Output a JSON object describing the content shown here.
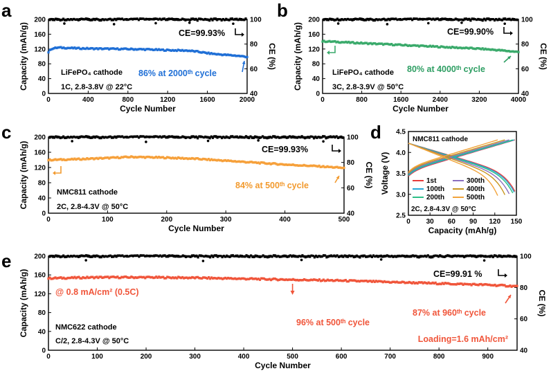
{
  "chart_data": [
    {
      "panel": "a",
      "type": "scatter",
      "xlabel": "Cycle Number",
      "ylabel": "Capacity (mAh/g)",
      "y2label": "CE (%)",
      "xlim": [
        0,
        2000
      ],
      "ylim": [
        0,
        200
      ],
      "y2lim": [
        40,
        100
      ],
      "xticks": [
        0,
        400,
        800,
        1200,
        1600,
        2000
      ],
      "yticks": [
        0,
        40,
        80,
        120,
        160,
        200
      ],
      "y2ticks": [
        40,
        60,
        80,
        100
      ],
      "notes": [
        "LiFePO₄ cathode",
        "1C, 2.8-3.8V @ 22°C"
      ],
      "ce_label": "CE=99.93%",
      "annotation": "86% at 2000ᵗʰ cycle",
      "annotation_color": "#1f6fd6",
      "series": [
        {
          "color": "#1f6fd6",
          "points": [
            [
              0,
              112
            ],
            [
              30,
              121
            ],
            [
              100,
              124
            ],
            [
              300,
              122
            ],
            [
              500,
              121
            ],
            [
              800,
              120
            ],
            [
              1000,
              119
            ],
            [
              1200,
              117
            ],
            [
              1400,
              116
            ],
            [
              1500,
              113
            ],
            [
              1600,
              109
            ],
            [
              1700,
              106
            ],
            [
              1800,
              104
            ],
            [
              1900,
              102
            ],
            [
              2000,
              99
            ]
          ]
        },
        {
          "color": "#000000",
          "axis": "y2",
          "points": [
            [
              0,
              99.9
            ],
            [
              2000,
              99.9
            ]
          ]
        }
      ]
    },
    {
      "panel": "b",
      "type": "scatter",
      "xlabel": "Cycle Number",
      "ylabel": "Capacity (mAh/g)",
      "y2label": "CE (%)",
      "xlim": [
        0,
        4000
      ],
      "ylim": [
        0,
        200
      ],
      "y2lim": [
        40,
        100
      ],
      "xticks": [
        0,
        800,
        1600,
        2400,
        3200,
        4000
      ],
      "yticks": [
        0,
        40,
        80,
        120,
        160,
        200
      ],
      "y2ticks": [
        40,
        60,
        80,
        100
      ],
      "notes": [
        "LiFePO₄ cathode",
        "3C, 2.8-3.9V @ 50°C"
      ],
      "ce_label": "CE=99.90%",
      "annotation": "80% at 4000ᵗʰ cycle",
      "annotation_color": "#2e9e63",
      "series": [
        {
          "color": "#3aaa6b",
          "points": [
            [
              0,
              141
            ],
            [
              200,
              140
            ],
            [
              800,
              136
            ],
            [
              1600,
              131
            ],
            [
              2400,
              126
            ],
            [
              3200,
              121
            ],
            [
              3600,
              117
            ],
            [
              4000,
              112
            ]
          ]
        },
        {
          "color": "#000000",
          "axis": "y2",
          "points": [
            [
              0,
              99.9
            ],
            [
              4000,
              99.9
            ]
          ]
        }
      ]
    },
    {
      "panel": "c",
      "type": "scatter",
      "xlabel": "Cycle Number",
      "ylabel": "Capacity (mAh/g)",
      "y2label": "CE (%)",
      "xlim": [
        0,
        500
      ],
      "ylim": [
        0,
        200
      ],
      "y2lim": [
        40,
        100
      ],
      "xticks": [
        0,
        100,
        200,
        300,
        400,
        500
      ],
      "yticks": [
        0,
        40,
        80,
        120,
        160,
        200
      ],
      "y2ticks": [
        40,
        60,
        80,
        100
      ],
      "notes": [
        "NMC811 cathode",
        "2C, 2.8-4.3V @ 50°C"
      ],
      "ce_label": "CE=99.93%",
      "annotation": "84% at 500ᵗʰ cycle",
      "annotation_color": "#f29a2e",
      "series": [
        {
          "color": "#f6a03a",
          "points": [
            [
              0,
              140
            ],
            [
              50,
              142
            ],
            [
              100,
              145
            ],
            [
              140,
              148
            ],
            [
              200,
              146
            ],
            [
              250,
              143
            ],
            [
              300,
              138
            ],
            [
              350,
              133
            ],
            [
              400,
              128
            ],
            [
              450,
              124
            ],
            [
              500,
              119
            ]
          ]
        },
        {
          "color": "#000000",
          "axis": "y2",
          "points": [
            [
              0,
              99.9
            ],
            [
              500,
              99.9
            ]
          ]
        }
      ]
    },
    {
      "panel": "d",
      "type": "line",
      "xlabel": "Capacity (mAh/g)",
      "ylabel": "Voltage (V)",
      "xlim": [
        0,
        150
      ],
      "ylim": [
        2.5,
        4.5
      ],
      "xticks": [
        0,
        30,
        60,
        90,
        120,
        150
      ],
      "yticks": [
        2.5,
        3.0,
        3.5,
        4.0,
        4.5
      ],
      "notes": [
        "NMC811 cathode",
        "2C, 2.8-4.3V @ 50°C"
      ],
      "legend": [
        {
          "name": "1st",
          "color": "#e83b3b"
        },
        {
          "name": "100th",
          "color": "#23a7d8"
        },
        {
          "name": "200th",
          "color": "#2bbf86"
        },
        {
          "name": "300th",
          "color": "#8a6fbf"
        },
        {
          "name": "400th",
          "color": "#c8961f"
        },
        {
          "name": "500th",
          "color": "#f2a33a"
        }
      ],
      "cycles": [
        {
          "name": "1st",
          "color": "#e83b3b",
          "qmax": 148
        },
        {
          "name": "100th",
          "color": "#23a7d8",
          "qmax": 147
        },
        {
          "name": "200th",
          "color": "#2bbf86",
          "qmax": 145
        },
        {
          "name": "300th",
          "color": "#8a6fbf",
          "qmax": 140
        },
        {
          "name": "400th",
          "color": "#c8961f",
          "qmax": 134
        },
        {
          "name": "500th",
          "color": "#f2a33a",
          "qmax": 124
        }
      ]
    },
    {
      "panel": "e",
      "type": "scatter",
      "xlabel": "Cycle Number",
      "ylabel": "Capacity (mAh/g)",
      "y2label": "CE (%)",
      "xlim": [
        0,
        960
      ],
      "ylim": [
        0,
        200
      ],
      "y2lim": [
        40,
        100
      ],
      "xticks": [
        0,
        100,
        200,
        300,
        400,
        500,
        600,
        700,
        800,
        900
      ],
      "yticks": [
        0,
        40,
        80,
        120,
        160,
        200
      ],
      "y2ticks": [
        40,
        60,
        80,
        100
      ],
      "notes": [
        "NMC622 cathode",
        "C/2, 2.8-4.3V @ 50°C"
      ],
      "ce_label": "CE=99.91 %",
      "rate_note": "@ 0.8 mA/cm² (0.5C)",
      "loading_note": "Loading=1.6 mAh/cm²",
      "annotation_500": "96% at 500ᵗʰ cycle",
      "annotation": "87% at 960ᵗʰ cycle",
      "annotation_color": "#f0553a",
      "series": [
        {
          "color": "#f0553a",
          "points": [
            [
              0,
              153
            ],
            [
              100,
              155
            ],
            [
              200,
              155
            ],
            [
              300,
              154
            ],
            [
              400,
              152
            ],
            [
              500,
              150
            ],
            [
              600,
              148
            ],
            [
              700,
              145
            ],
            [
              800,
              142
            ],
            [
              900,
              139
            ],
            [
              960,
              136
            ]
          ]
        },
        {
          "color": "#000000",
          "axis": "y2",
          "points": [
            [
              0,
              99.9
            ],
            [
              960,
              99.9
            ]
          ]
        }
      ]
    }
  ]
}
